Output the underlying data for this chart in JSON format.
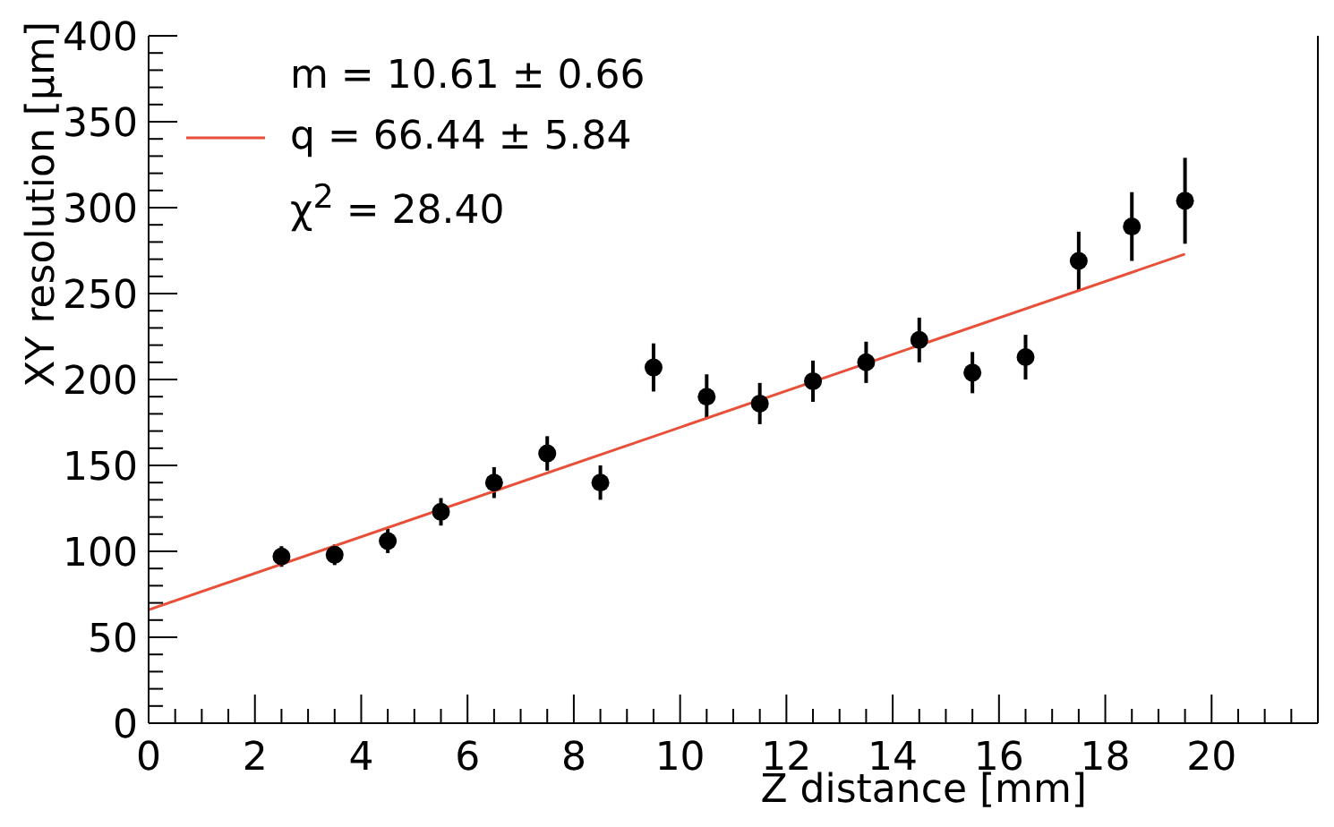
{
  "chart_data": {
    "type": "scatter",
    "xlabel": "Z distance [mm]",
    "ylabel": "XY resolution [μm]",
    "xlim": [
      0,
      22
    ],
    "ylim": [
      0,
      400
    ],
    "xticks": [
      0,
      {
        "value": 0.5,
        "label": null
      },
      {
        "value": 1,
        "label": null
      },
      {
        "value": 1.5,
        "label": null
      },
      2,
      {
        "value": 2.5,
        "label": null
      },
      {
        "value": 3,
        "label": null
      },
      {
        "value": 3.5,
        "label": null
      },
      4,
      {
        "value": 4.5,
        "label": null
      },
      {
        "value": 5,
        "label": null
      },
      {
        "value": 5.5,
        "label": null
      },
      6,
      {
        "value": 6.5,
        "label": null
      },
      {
        "value": 7,
        "label": null
      },
      {
        "value": 7.5,
        "label": null
      },
      8,
      {
        "value": 8.5,
        "label": null
      },
      {
        "value": 9,
        "label": null
      },
      {
        "value": 9.5,
        "label": null
      },
      10,
      {
        "value": 10.5,
        "label": null
      },
      {
        "value": 11,
        "label": null
      },
      {
        "value": 11.5,
        "label": null
      },
      12,
      {
        "value": 12.5,
        "label": null
      },
      {
        "value": 13,
        "label": null
      },
      {
        "value": 13.5,
        "label": null
      },
      14,
      {
        "value": 14.5,
        "label": null
      },
      {
        "value": 15,
        "label": null
      },
      {
        "value": 15.5,
        "label": null
      },
      16,
      {
        "value": 16.5,
        "label": null
      },
      {
        "value": 17,
        "label": null
      },
      {
        "value": 17.5,
        "label": null
      },
      18,
      {
        "value": 18.5,
        "label": null
      },
      {
        "value": 19,
        "label": null
      },
      {
        "value": 19.5,
        "label": null
      },
      20,
      {
        "value": 20.5,
        "label": null
      },
      {
        "value": 21,
        "label": null
      },
      {
        "value": 21.5,
        "label": null
      }
    ],
    "yticks": [
      0,
      {
        "value": 10,
        "label": null
      },
      {
        "value": 20,
        "label": null
      },
      {
        "value": 30,
        "label": null
      },
      {
        "value": 40,
        "label": null
      },
      50,
      {
        "value": 60,
        "label": null
      },
      {
        "value": 70,
        "label": null
      },
      {
        "value": 80,
        "label": null
      },
      {
        "value": 90,
        "label": null
      },
      100,
      {
        "value": 110,
        "label": null
      },
      {
        "value": 120,
        "label": null
      },
      {
        "value": 130,
        "label": null
      },
      {
        "value": 140,
        "label": null
      },
      150,
      {
        "value": 160,
        "label": null
      },
      {
        "value": 170,
        "label": null
      },
      {
        "value": 180,
        "label": null
      },
      {
        "value": 190,
        "label": null
      },
      200,
      {
        "value": 210,
        "label": null
      },
      {
        "value": 220,
        "label": null
      },
      {
        "value": 230,
        "label": null
      },
      {
        "value": 240,
        "label": null
      },
      250,
      {
        "value": 260,
        "label": null
      },
      {
        "value": 270,
        "label": null
      },
      {
        "value": 280,
        "label": null
      },
      {
        "value": 290,
        "label": null
      },
      300,
      {
        "value": 310,
        "label": null
      },
      {
        "value": 320,
        "label": null
      },
      {
        "value": 330,
        "label": null
      },
      {
        "value": 340,
        "label": null
      },
      350,
      {
        "value": 360,
        "label": null
      },
      {
        "value": 370,
        "label": null
      },
      {
        "value": 380,
        "label": null
      },
      {
        "value": 390,
        "label": null
      },
      400
    ],
    "x": [
      2.5,
      3.5,
      4.5,
      5.5,
      6.5,
      7.5,
      8.5,
      9.5,
      10.5,
      11.5,
      12.5,
      13.5,
      14.5,
      15.5,
      16.5,
      17.5,
      18.5,
      19.5
    ],
    "marker": "circle",
    "legend": "top left",
    "series": [
      {
        "color": "#000000",
        "values": [
          97,
          98,
          106,
          123,
          140,
          157,
          140,
          207,
          190,
          186,
          199,
          210,
          223,
          204,
          213,
          269,
          289,
          304
        ],
        "errors": [
          6,
          6,
          7,
          8,
          9,
          10,
          10,
          14,
          13,
          12,
          12,
          12,
          13,
          12,
          13,
          17,
          20,
          25
        ]
      },
      {
        "type": "line",
        "name": "q = 66.44 ± 5.84",
        "color": "#e8503a",
        "x": [
          0,
          19.5
        ],
        "values": [
          66,
          273
        ],
        "marker": "none"
      }
    ],
    "annotations": [
      "m = 10.61 ± 0.66",
      "χ$^{2}$ = 28.40"
    ]
  }
}
